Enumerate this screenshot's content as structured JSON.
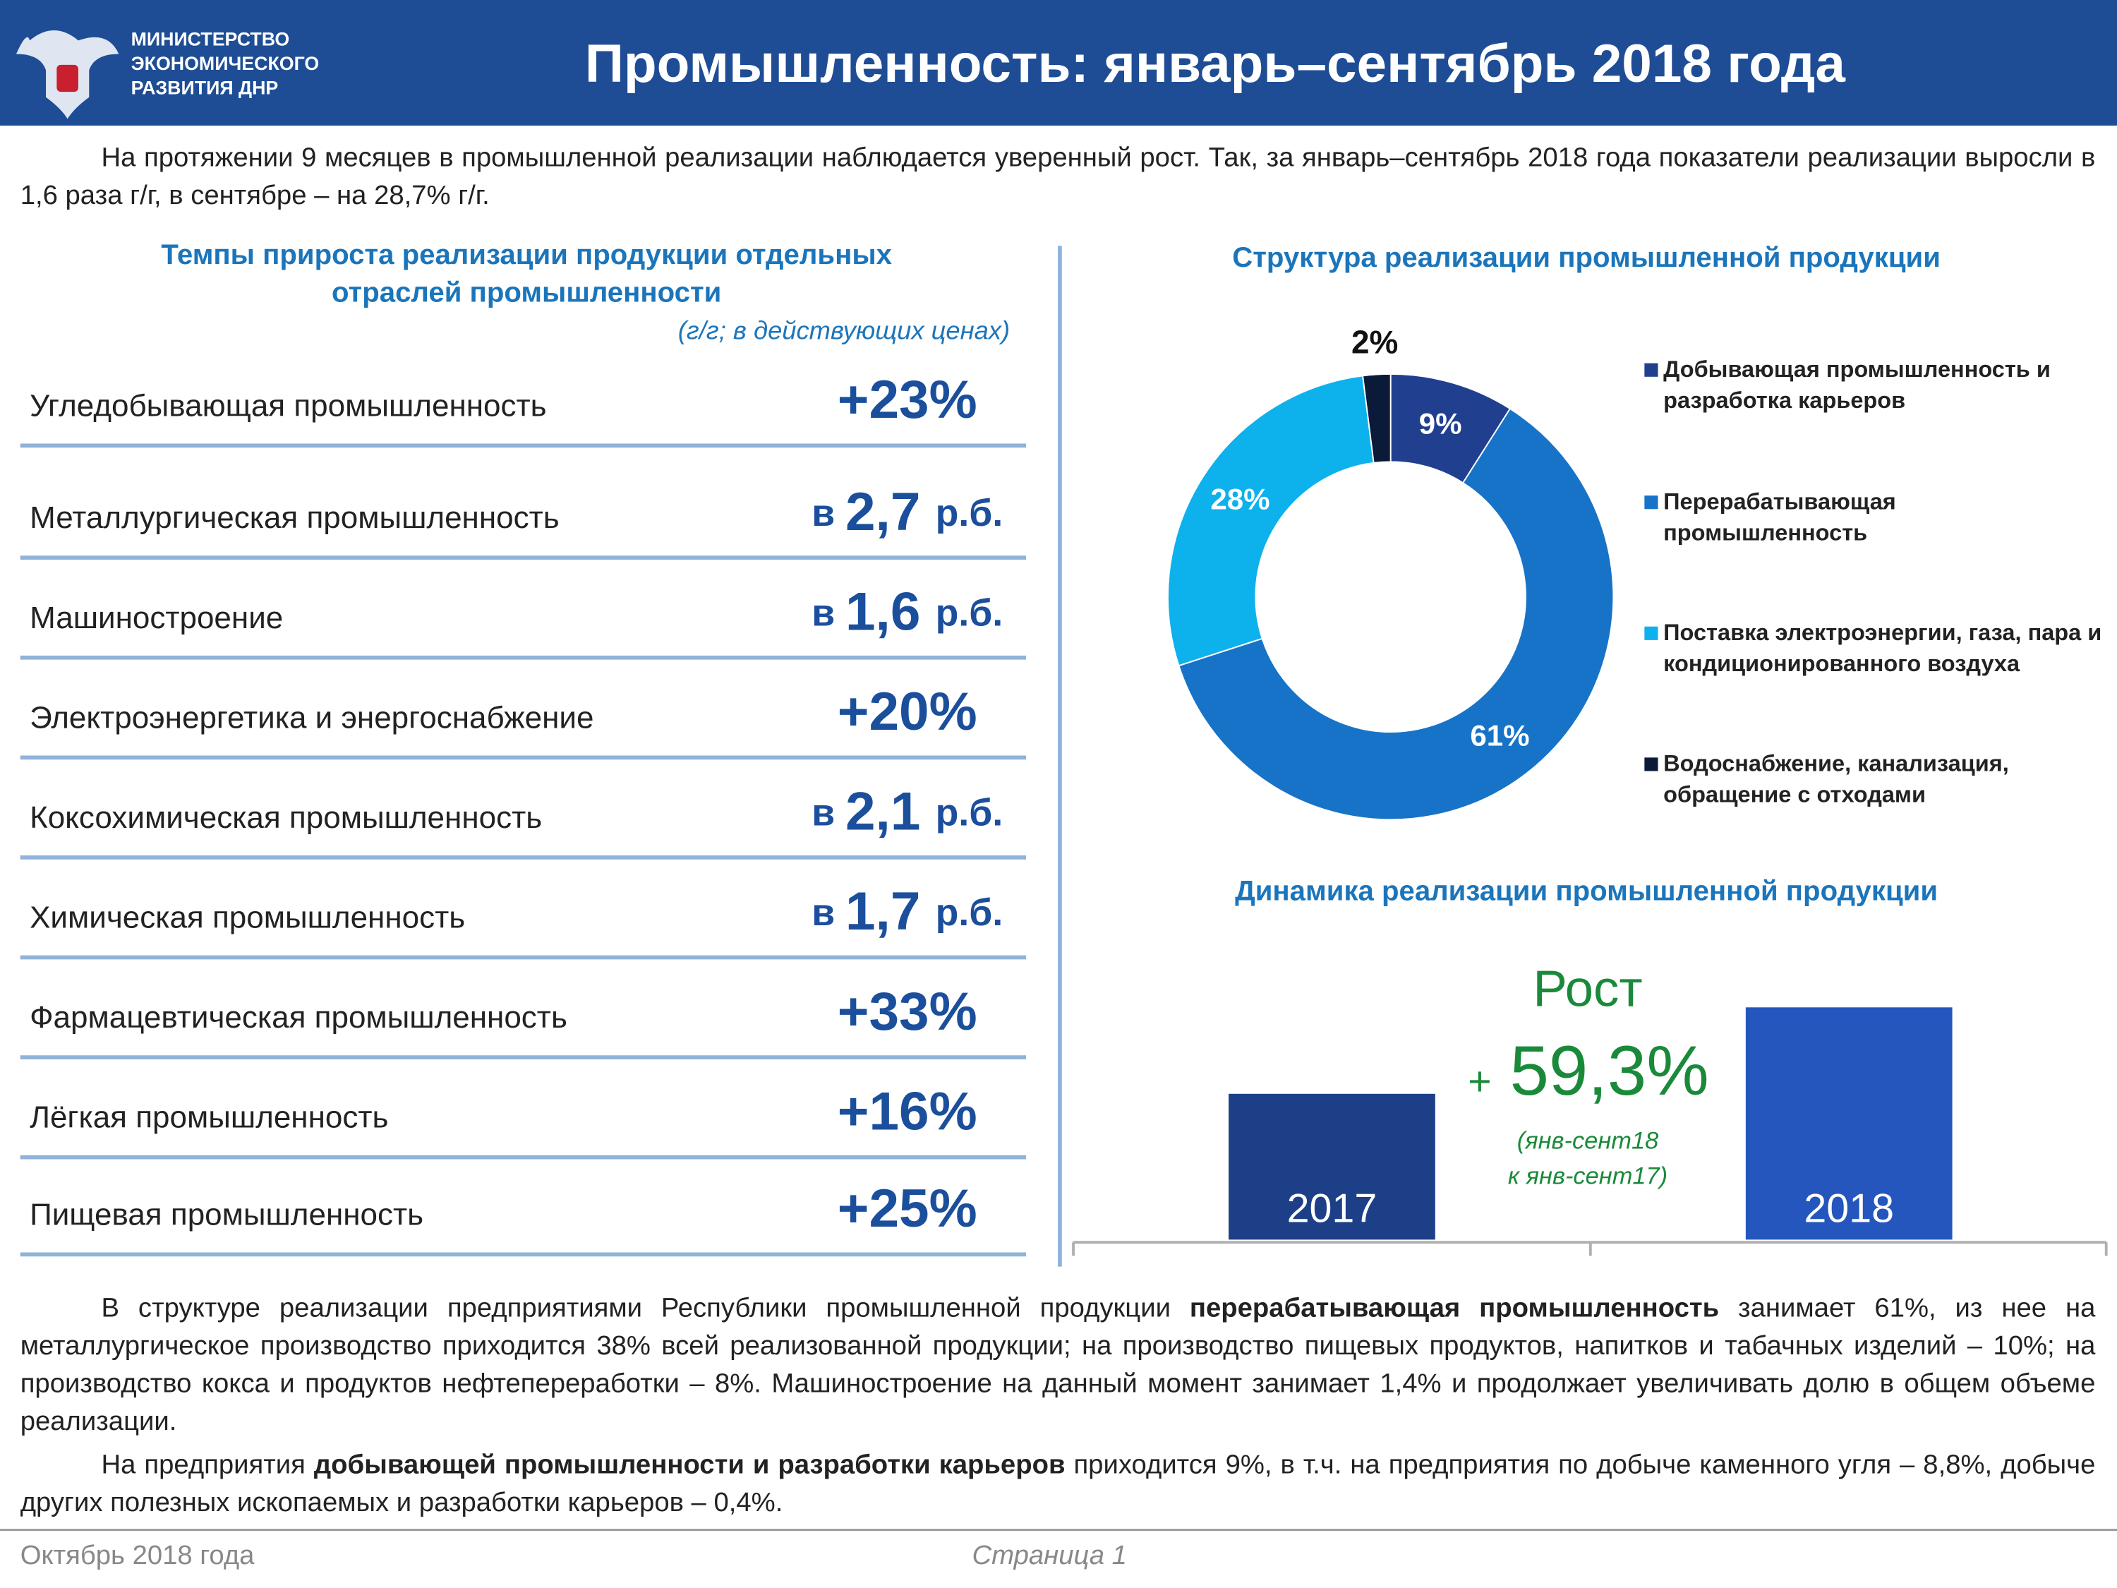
{
  "header": {
    "ministry": [
      "МИНИСТЕРСТВО",
      "ЭКОНОМИЧЕСКОГО",
      "РАЗВИТИЯ ДНР"
    ],
    "title": "Промышленность: январь–сентябрь 2018 года"
  },
  "intro": "На протяжении 9 месяцев в промышленной реализации наблюдается уверенный рост. Так, за январь–сентябрь 2018 года показатели реализации выросли в 1,6 раза г/г, в сентябре – на 28,7% г/г.",
  "growth_table": {
    "title": [
      "Темпы прироста реализации продукции отдельных",
      "отраслей промышленности"
    ],
    "subtitle": "(г/г; в действующих ценах)",
    "rows": [
      {
        "label": "Угледобывающая промышленность",
        "value": "+23%"
      },
      {
        "label": "Металлургическая промышленность",
        "value": "в 2,7 р.б."
      },
      {
        "label": "Машиностроение",
        "value": "в 1,6 р.б."
      },
      {
        "label": "Электроэнергетика и энергоснабжение",
        "value": "+20%"
      },
      {
        "label": "Коксохимическая промышленность",
        "value": "в 2,1 р.б."
      },
      {
        "label": "Химическая промышленность",
        "value": "в 1,7 р.б."
      },
      {
        "label": "Фармацевтическая промышленность",
        "value": "+33%"
      },
      {
        "label": "Лёгкая промышленность",
        "value": "+16%"
      },
      {
        "label": "Пищевая промышленность",
        "value": "+25%"
      }
    ]
  },
  "chart_data": [
    {
      "type": "pie",
      "title": "Структура реализации промышленной продукции",
      "categories": [
        "Добывающая промышленность и разработка карьеров",
        "Перерабатывающая промышленность",
        "Поставка электроэнергии, газа, пара и кондиционированного воздуха",
        "Водоснабжение, канализация, обращение с отходами"
      ],
      "values": [
        9,
        61,
        28,
        2
      ],
      "value_labels": [
        "9%",
        "61%",
        "28%",
        "2%"
      ],
      "colors": [
        "#213f8f",
        "#1773c7",
        "#0db1ec",
        "#0c1a3a"
      ],
      "donut": true
    },
    {
      "type": "bar",
      "title": "Динамика реализации промышленной продукции",
      "categories": [
        "2017",
        "2018"
      ],
      "values": [
        100,
        159.3
      ],
      "colors": [
        "#1c3f88",
        "#2556be"
      ],
      "annotation": {
        "label": "Рост",
        "sign": "+",
        "value": "59,3%",
        "note": [
          "(янв-сент18",
          "к янв-сент17)"
        ]
      }
    }
  ],
  "body": [
    [
      "В структуре реализации предприятиями Республики промышленной продукции ",
      "перерабатывающая промышленность",
      " занимает 61%, из нее на металлургическое производство приходится 38% всей реализованной продукции; на производство пищевых продуктов, напитков и табачных изделий – 10%;  на производство кокса и продуктов нефтепереработки – 8%. Машиностроение на данный момент занимает 1,4% и продолжает увеличивать долю в общем объеме реализации."
    ],
    [
      "На предприятия ",
      "добывающей промышленности и разработки карьеров",
      " приходится 9%, в т.ч. на предприятия по добыче каменного угля – 8,8%, добыче других полезных ископаемых и разработки карьеров – 0,4%."
    ]
  ],
  "footer": {
    "date": "Октябрь 2018 года",
    "page": "Страница 1"
  }
}
